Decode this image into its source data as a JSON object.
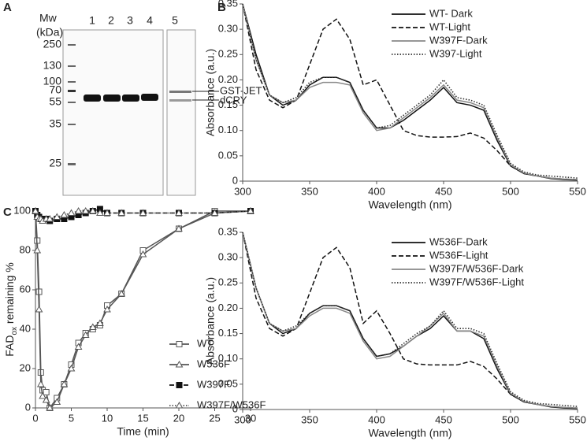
{
  "gel": {
    "letter": "A",
    "mw_title": "Mw",
    "mw_unit": "(kDa)",
    "ladder": [
      250,
      130,
      100,
      70,
      55,
      35,
      25
    ],
    "lanes": [
      "1",
      "2",
      "3",
      "4",
      "5"
    ],
    "arrows": [
      "GST-JET",
      "dCRY"
    ]
  },
  "chart_data": [
    {
      "type": "line",
      "letter": "B",
      "xlabel": "Wavelength (nm)",
      "ylabel": "Absorbance (a.u.)",
      "x": [
        300,
        310,
        320,
        330,
        340,
        350,
        360,
        370,
        380,
        390,
        400,
        410,
        420,
        430,
        440,
        450,
        460,
        470,
        480,
        490,
        500,
        510,
        520,
        530,
        540,
        550
      ],
      "xlim": [
        300,
        550
      ],
      "xticks": [
        300,
        350,
        400,
        450,
        500,
        550
      ],
      "ylim": [
        0,
        0.35
      ],
      "yticks": [
        0,
        0.05,
        {
          "value": 0.1,
          "label": "0.10"
        },
        0.15,
        {
          "value": 0.2,
          "label": "0.20"
        },
        0.25,
        {
          "value": 0.3,
          "label": "0.30"
        },
        0.35
      ],
      "series": [
        {
          "name": "WT- Dark",
          "color": "#111111",
          "style": "solid",
          "values": [
            0.35,
            0.25,
            0.17,
            0.15,
            0.16,
            0.19,
            0.205,
            0.205,
            0.195,
            0.14,
            0.105,
            0.105,
            0.12,
            0.14,
            0.16,
            0.185,
            0.155,
            0.15,
            0.14,
            0.08,
            0.03,
            0.015,
            0.01,
            0.005,
            0.003,
            0.002
          ]
        },
        {
          "name": "WT-Light",
          "color": "#111111",
          "style": "dashed",
          "values": [
            0.35,
            0.22,
            0.16,
            0.145,
            0.16,
            0.23,
            0.3,
            0.32,
            0.28,
            0.19,
            0.2,
            0.15,
            0.1,
            0.09,
            0.087,
            0.087,
            0.088,
            0.095,
            0.085,
            0.06,
            0.03,
            0.015,
            0.01,
            0.006,
            0.004,
            0.003
          ]
        },
        {
          "name": "W397F-Dark",
          "color": "#888888",
          "style": "solid",
          "values": [
            0.35,
            0.24,
            0.17,
            0.155,
            0.16,
            0.185,
            0.195,
            0.195,
            0.19,
            0.135,
            0.1,
            0.105,
            0.125,
            0.145,
            0.165,
            0.19,
            0.16,
            0.155,
            0.145,
            0.085,
            0.032,
            0.016,
            0.01,
            0.006,
            0.004,
            0.003
          ]
        },
        {
          "name": "W397-Light",
          "color": "#333333",
          "style": "dotted",
          "values": [
            0.35,
            0.24,
            0.17,
            0.155,
            0.165,
            0.195,
            0.205,
            0.205,
            0.195,
            0.14,
            0.105,
            0.11,
            0.13,
            0.15,
            0.17,
            0.2,
            0.165,
            0.16,
            0.15,
            0.09,
            0.035,
            0.018,
            0.012,
            0.01,
            0.008,
            0.006
          ]
        }
      ]
    },
    {
      "type": "line",
      "letter": "C",
      "xlabel": "Time (min)",
      "ylabel": {
        "main": "FAD",
        "sub": "ox",
        "rest": " remaining %"
      },
      "x": [
        0,
        0.25,
        0.5,
        0.75,
        1,
        1.5,
        2,
        3,
        4,
        5,
        6,
        7,
        8,
        9,
        10,
        12,
        15,
        20,
        25,
        30
      ],
      "xlim": [
        0,
        30
      ],
      "xticks": [
        0,
        5,
        10,
        15,
        20,
        25,
        30
      ],
      "ylim": [
        0,
        100
      ],
      "yticks": [
        0,
        20,
        40,
        60,
        80,
        100
      ],
      "series": [
        {
          "name": "WT",
          "color": "#555555",
          "style": "solid",
          "marker": "open-square",
          "values": [
            100,
            85,
            59,
            18,
            9,
            8,
            0,
            5,
            12,
            22,
            33,
            38,
            40,
            42,
            52,
            58,
            80,
            91,
            100,
            100
          ]
        },
        {
          "name": "W536F",
          "color": "#555555",
          "style": "solid",
          "marker": "open-triangle",
          "values": [
            100,
            80,
            50,
            12,
            6,
            4,
            0,
            3,
            12,
            20,
            31,
            37,
            41,
            43,
            50,
            58,
            78,
            91,
            99,
            100
          ]
        },
        {
          "name": "W397F",
          "color": "#111111",
          "style": "dashed",
          "marker": "filled-square",
          "values": [
            100,
            98,
            97,
            96,
            96,
            96,
            95,
            96,
            96,
            97,
            98,
            99,
            100,
            101,
            99,
            99,
            99,
            99,
            99,
            100
          ]
        },
        {
          "name": "W397F/W536F",
          "color": "#555555",
          "style": "dotted",
          "marker": "open-triangle",
          "values": [
            100,
            97,
            96,
            96,
            95,
            96,
            96,
            97,
            98,
            99,
            100,
            100,
            100,
            99,
            99,
            99,
            99,
            99,
            99,
            100
          ]
        }
      ]
    },
    {
      "type": "line",
      "xlabel": "Wavelength (nm)",
      "ylabel": "Absorbance (a.u.)",
      "x": [
        300,
        310,
        320,
        330,
        340,
        350,
        360,
        370,
        380,
        390,
        400,
        410,
        420,
        430,
        440,
        450,
        460,
        470,
        480,
        490,
        500,
        510,
        520,
        530,
        540,
        550
      ],
      "xlim": [
        300,
        550
      ],
      "xticks": [
        300,
        350,
        400,
        450,
        500,
        550
      ],
      "ylim": [
        0,
        0.35
      ],
      "yticks": [
        0,
        0.05,
        {
          "value": 0.1,
          "label": "0.10"
        },
        0.15,
        {
          "value": 0.2,
          "label": "0.20"
        },
        0.25,
        {
          "value": 0.3,
          "label": "0.30"
        },
        0.35
      ],
      "series": [
        {
          "name": "W536F-Dark",
          "color": "#111111",
          "style": "solid",
          "values": [
            0.35,
            0.24,
            0.17,
            0.15,
            0.16,
            0.19,
            0.205,
            0.205,
            0.195,
            0.14,
            0.105,
            0.11,
            0.125,
            0.145,
            0.16,
            0.185,
            0.155,
            0.155,
            0.14,
            0.08,
            0.03,
            0.015,
            0.01,
            0.005,
            0.003,
            0.002
          ]
        },
        {
          "name": "W536F-Light",
          "color": "#111111",
          "style": "dashed",
          "values": [
            0.35,
            0.22,
            0.16,
            0.145,
            0.16,
            0.23,
            0.3,
            0.32,
            0.28,
            0.17,
            0.195,
            0.15,
            0.1,
            0.09,
            0.088,
            0.088,
            0.088,
            0.095,
            0.085,
            0.06,
            0.03,
            0.015,
            0.01,
            0.006,
            0.004,
            0.003
          ]
        },
        {
          "name": "W397F/W536F-Dark",
          "color": "#888888",
          "style": "solid",
          "values": [
            0.35,
            0.24,
            0.17,
            0.155,
            0.16,
            0.185,
            0.2,
            0.2,
            0.19,
            0.135,
            0.1,
            0.105,
            0.125,
            0.145,
            0.165,
            0.19,
            0.155,
            0.155,
            0.145,
            0.085,
            0.032,
            0.016,
            0.01,
            0.006,
            0.004,
            0.003
          ]
        },
        {
          "name": "W397F/W536F-Light",
          "color": "#333333",
          "style": "dotted",
          "values": [
            0.35,
            0.24,
            0.17,
            0.155,
            0.165,
            0.19,
            0.205,
            0.205,
            0.195,
            0.14,
            0.105,
            0.11,
            0.13,
            0.15,
            0.165,
            0.195,
            0.16,
            0.16,
            0.15,
            0.09,
            0.035,
            0.018,
            0.012,
            0.01,
            0.008,
            0.006
          ]
        }
      ]
    }
  ]
}
